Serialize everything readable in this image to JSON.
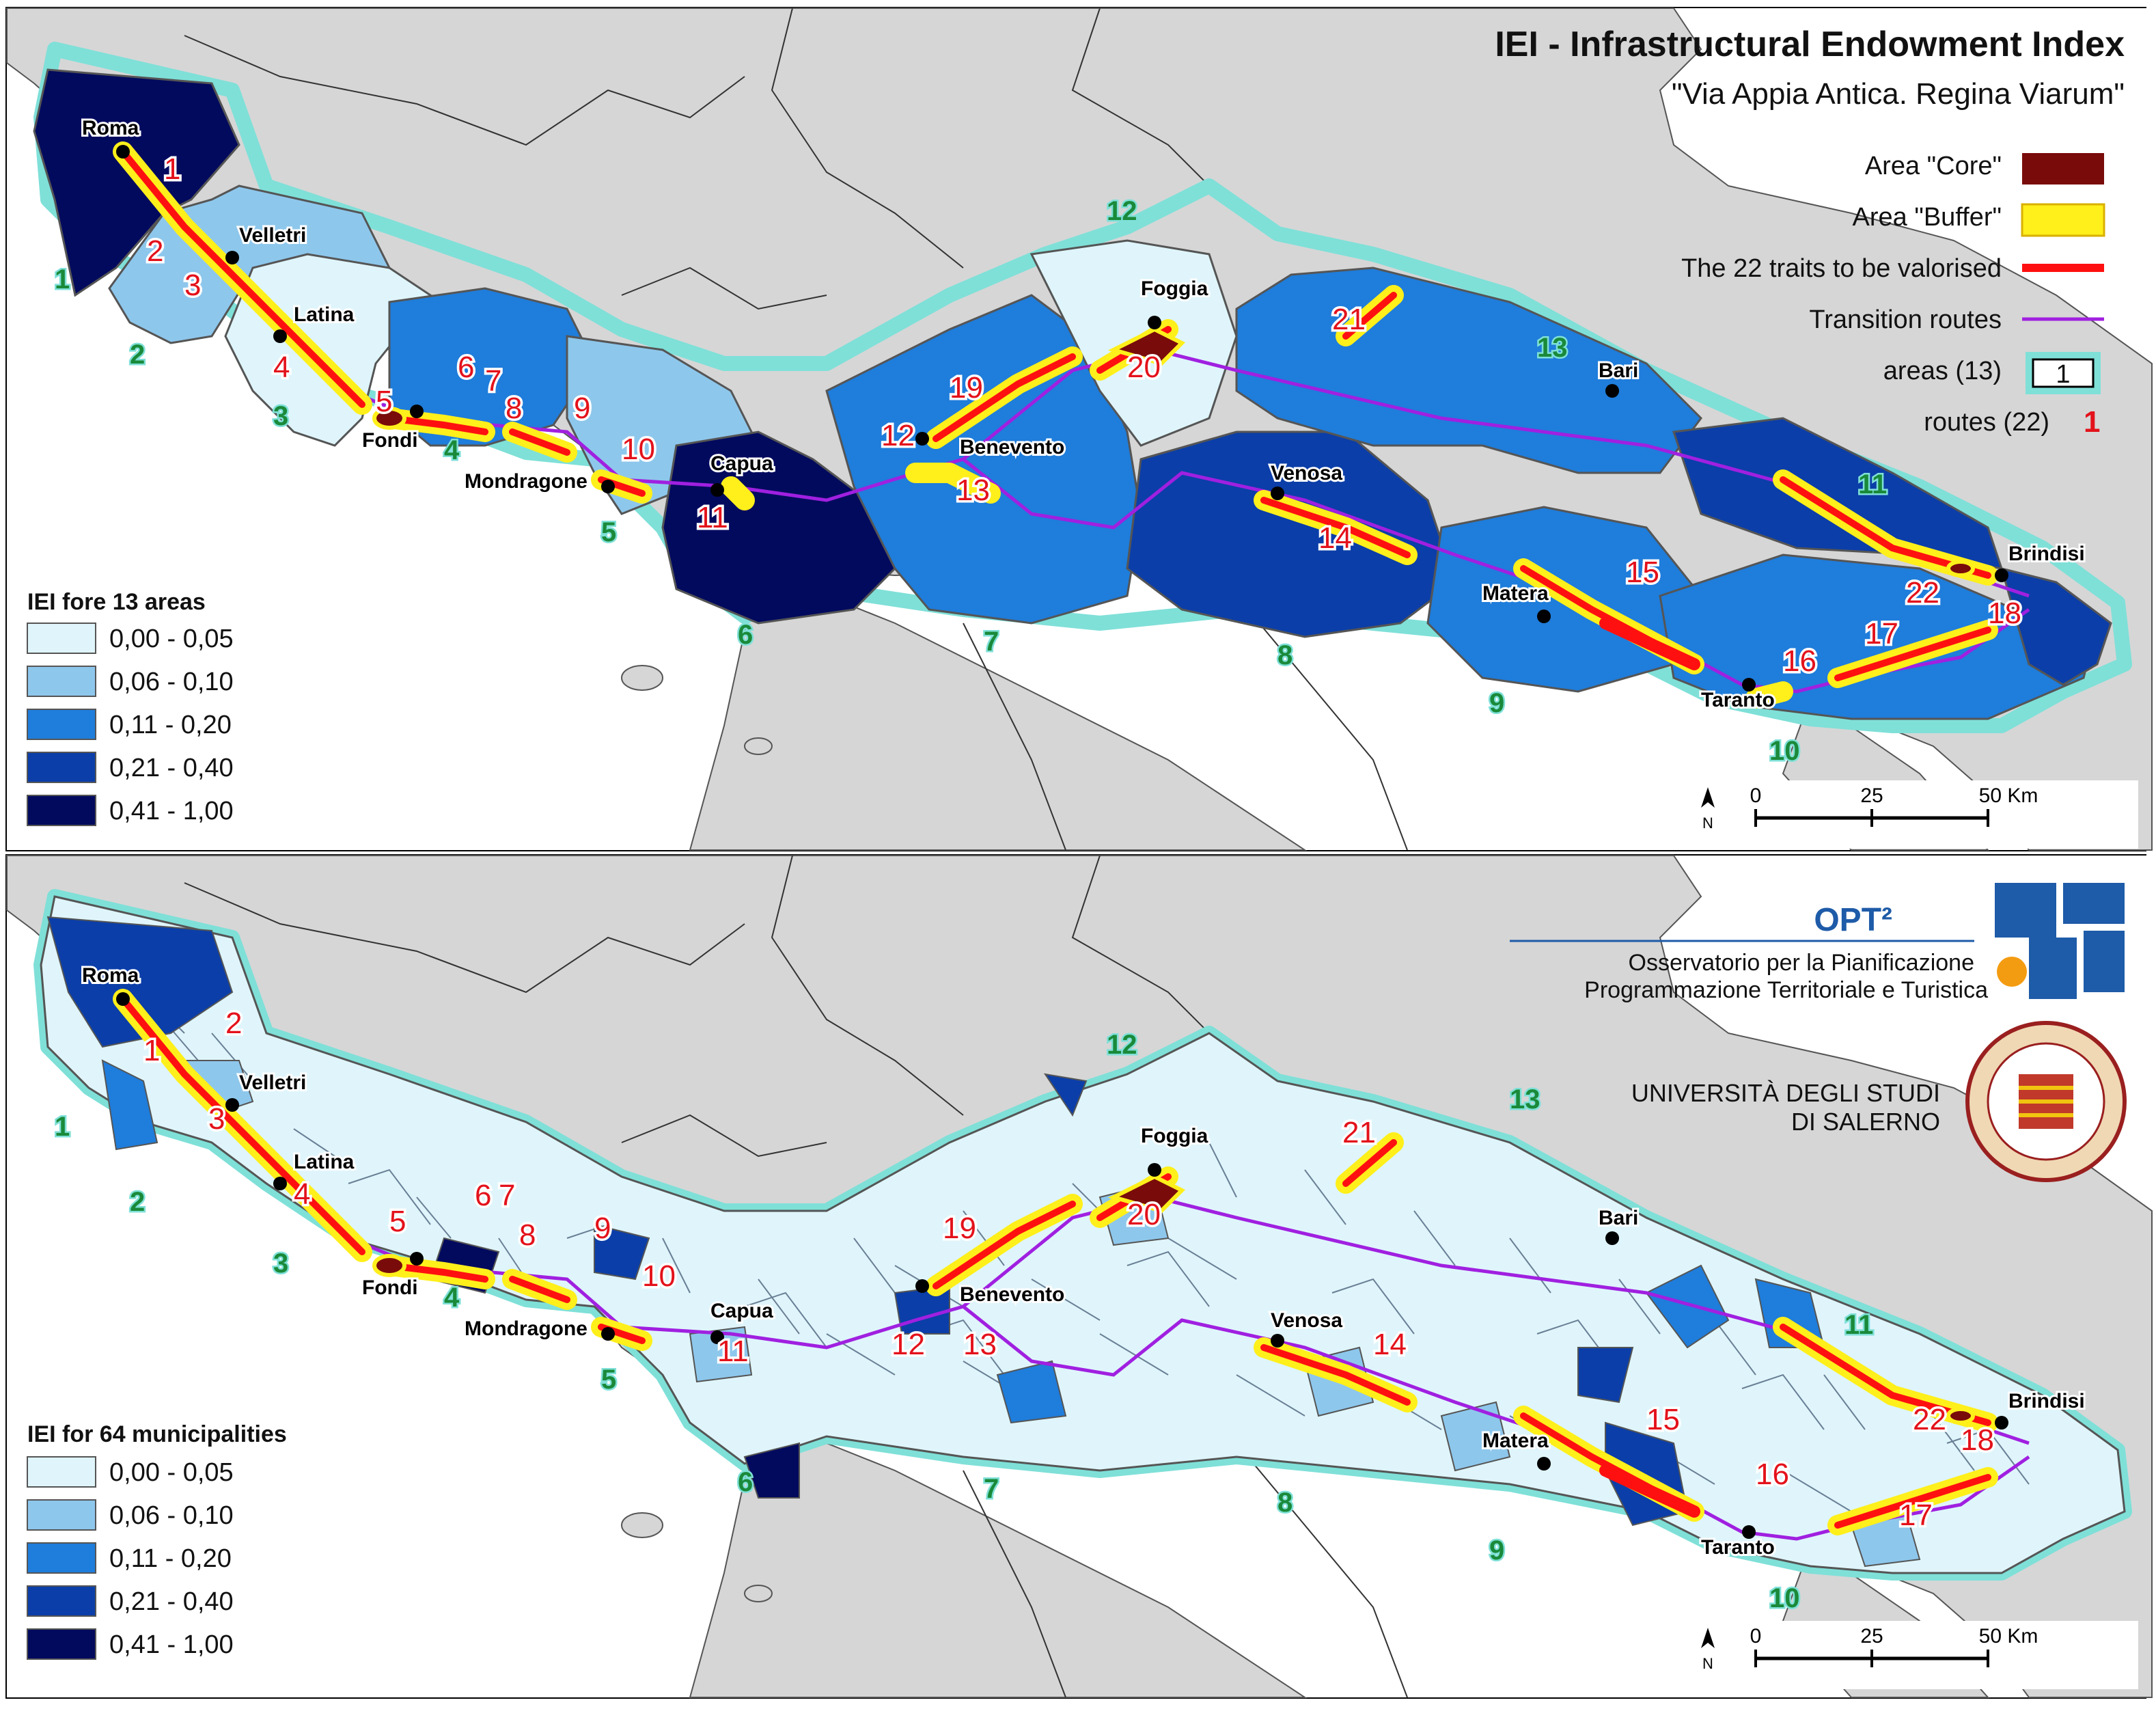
{
  "header": {
    "title": "IEI - Infrastructural Endowment Index",
    "subtitle": "\"Via Appia Antica. Regina Viarum\""
  },
  "legend": {
    "core": "Area \"Core\"",
    "buffer": "Area \"Buffer\"",
    "traits": "The 22 traits to be valorised",
    "transition": "Transition routes",
    "areas": "areas (13)",
    "areas_sample": "1",
    "routes": "routes (22)",
    "routes_sample": "1"
  },
  "colors": {
    "class1": "#dff5fb",
    "class2": "#8ec7ec",
    "class3": "#1f7ddb",
    "class4": "#0b3ea8",
    "class5": "#020a5e",
    "core": "#7a0b0b",
    "buffer": "#ffef1a",
    "trait": "#ff1010",
    "transition": "#a020e0",
    "area_outline": "#7fe0d8",
    "land": "#d9d9d9",
    "sea": "#ffffff"
  },
  "top_panel": {
    "class_title": "IEI fore 13 areas",
    "classes": [
      "0,00 - 0,05",
      "0,06 - 0,10",
      "0,11 - 0,20",
      "0,21 - 0,40",
      "0,41 - 1,00"
    ]
  },
  "bottom_panel": {
    "class_title": "IEI for 64 municipalities",
    "classes": [
      "0,00 - 0,05",
      "0,06 - 0,10",
      "0,11 - 0,20",
      "0,21 - 0,40",
      "0,41 - 1,00"
    ]
  },
  "scalebar": {
    "ticks": [
      "0",
      "25",
      "50 Km"
    ],
    "north": "N"
  },
  "cities": [
    "Roma",
    "Velletri",
    "Latina",
    "Fondi",
    "Mondragone",
    "Capua",
    "Benevento",
    "Foggia",
    "Venosa",
    "Bari",
    "Matera",
    "Taranto",
    "Brindisi"
  ],
  "area_labels": [
    "1",
    "2",
    "3",
    "4",
    "5",
    "6",
    "7",
    "8",
    "9",
    "10",
    "11",
    "12",
    "13"
  ],
  "route_labels": [
    "1",
    "2",
    "3",
    "4",
    "5",
    "6",
    "7",
    "8",
    "9",
    "10",
    "11",
    "12",
    "13",
    "14",
    "15",
    "16",
    "17",
    "18",
    "19",
    "20",
    "21",
    "22"
  ],
  "logos": {
    "opt_name": "OPT²",
    "opt_line1": "Osservatorio per la Pianificazione",
    "opt_line2": "Programmazione Territoriale e Turistica",
    "univ_line1": "UNIVERSITÀ DEGLI STUDI",
    "univ_line2": "DI SALERNO"
  }
}
